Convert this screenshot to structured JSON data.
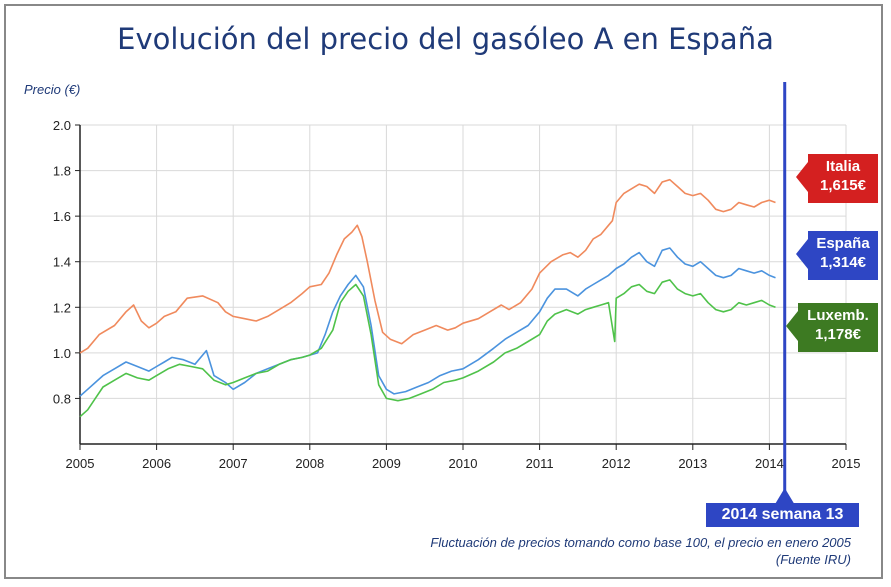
{
  "title": "Evolución del precio del gasóleo A en España",
  "y_axis_label": "Precio (€)",
  "footnote": {
    "line1": "Fluctuación de precios tomando como base 100, el precio en enero 2005",
    "line2": "(Fuente IRU)"
  },
  "week_marker": {
    "label": "2014 semana 13",
    "x": 2014.2
  },
  "callouts": {
    "italia": {
      "name": "Italia",
      "value": "1,615€",
      "color": "#d42020"
    },
    "espana": {
      "name": "España",
      "value": "1,314€",
      "color": "#2e46c4"
    },
    "luxemb": {
      "name": "Luxemb.",
      "value": "1,178€",
      "color": "#3d7a22"
    }
  },
  "chart_data": {
    "type": "line",
    "title": "Evolución del precio del gasóleo A en España",
    "ylabel": "Precio (€)",
    "xlabel": "",
    "xlim": [
      2005,
      2015
    ],
    "ylim": [
      0.6,
      2.0
    ],
    "x_ticks": [
      2005,
      2006,
      2007,
      2008,
      2009,
      2010,
      2011,
      2012,
      2013,
      2014,
      2015
    ],
    "y_ticks": [
      "0.8",
      "1.0",
      "1.2",
      "1.4",
      "1.6",
      "1.8",
      "2.0"
    ],
    "grid": true,
    "series": [
      {
        "name": "Italia",
        "color": "#f08a5d",
        "points": [
          [
            2005.0,
            1.0
          ],
          [
            2005.1,
            1.02
          ],
          [
            2005.25,
            1.08
          ],
          [
            2005.45,
            1.12
          ],
          [
            2005.6,
            1.18
          ],
          [
            2005.7,
            1.21
          ],
          [
            2005.8,
            1.14
          ],
          [
            2005.9,
            1.11
          ],
          [
            2006.0,
            1.13
          ],
          [
            2006.1,
            1.16
          ],
          [
            2006.25,
            1.18
          ],
          [
            2006.4,
            1.24
          ],
          [
            2006.6,
            1.25
          ],
          [
            2006.8,
            1.22
          ],
          [
            2006.9,
            1.18
          ],
          [
            2007.0,
            1.16
          ],
          [
            2007.15,
            1.15
          ],
          [
            2007.3,
            1.14
          ],
          [
            2007.45,
            1.16
          ],
          [
            2007.6,
            1.19
          ],
          [
            2007.75,
            1.22
          ],
          [
            2007.9,
            1.26
          ],
          [
            2008.0,
            1.29
          ],
          [
            2008.15,
            1.3
          ],
          [
            2008.25,
            1.35
          ],
          [
            2008.35,
            1.43
          ],
          [
            2008.45,
            1.5
          ],
          [
            2008.55,
            1.53
          ],
          [
            2008.62,
            1.56
          ],
          [
            2008.68,
            1.51
          ],
          [
            2008.75,
            1.4
          ],
          [
            2008.85,
            1.23
          ],
          [
            2008.95,
            1.09
          ],
          [
            2009.05,
            1.06
          ],
          [
            2009.2,
            1.04
          ],
          [
            2009.35,
            1.08
          ],
          [
            2009.5,
            1.1
          ],
          [
            2009.65,
            1.12
          ],
          [
            2009.8,
            1.1
          ],
          [
            2009.9,
            1.11
          ],
          [
            2010.0,
            1.13
          ],
          [
            2010.2,
            1.15
          ],
          [
            2010.35,
            1.18
          ],
          [
            2010.5,
            1.21
          ],
          [
            2010.6,
            1.19
          ],
          [
            2010.75,
            1.22
          ],
          [
            2010.9,
            1.28
          ],
          [
            2011.0,
            1.35
          ],
          [
            2011.15,
            1.4
          ],
          [
            2011.3,
            1.43
          ],
          [
            2011.4,
            1.44
          ],
          [
            2011.5,
            1.42
          ],
          [
            2011.6,
            1.45
          ],
          [
            2011.7,
            1.5
          ],
          [
            2011.8,
            1.52
          ],
          [
            2011.9,
            1.56
          ],
          [
            2011.95,
            1.58
          ],
          [
            2012.0,
            1.66
          ],
          [
            2012.1,
            1.7
          ],
          [
            2012.2,
            1.72
          ],
          [
            2012.3,
            1.74
          ],
          [
            2012.4,
            1.73
          ],
          [
            2012.5,
            1.7
          ],
          [
            2012.6,
            1.75
          ],
          [
            2012.7,
            1.76
          ],
          [
            2012.8,
            1.73
          ],
          [
            2012.9,
            1.7
          ],
          [
            2013.0,
            1.69
          ],
          [
            2013.1,
            1.7
          ],
          [
            2013.2,
            1.67
          ],
          [
            2013.3,
            1.63
          ],
          [
            2013.4,
            1.62
          ],
          [
            2013.5,
            1.63
          ],
          [
            2013.6,
            1.66
          ],
          [
            2013.7,
            1.65
          ],
          [
            2013.8,
            1.64
          ],
          [
            2013.9,
            1.66
          ],
          [
            2014.0,
            1.67
          ],
          [
            2014.08,
            1.66
          ]
        ]
      },
      {
        "name": "España",
        "color": "#4b93de",
        "points": [
          [
            2005.0,
            0.81
          ],
          [
            2005.1,
            0.84
          ],
          [
            2005.2,
            0.87
          ],
          [
            2005.3,
            0.9
          ],
          [
            2005.45,
            0.93
          ],
          [
            2005.6,
            0.96
          ],
          [
            2005.75,
            0.94
          ],
          [
            2005.9,
            0.92
          ],
          [
            2006.0,
            0.94
          ],
          [
            2006.1,
            0.96
          ],
          [
            2006.2,
            0.98
          ],
          [
            2006.35,
            0.97
          ],
          [
            2006.5,
            0.95
          ],
          [
            2006.65,
            1.01
          ],
          [
            2006.75,
            0.9
          ],
          [
            2006.9,
            0.87
          ],
          [
            2007.0,
            0.84
          ],
          [
            2007.15,
            0.87
          ],
          [
            2007.3,
            0.91
          ],
          [
            2007.45,
            0.93
          ],
          [
            2007.6,
            0.95
          ],
          [
            2007.75,
            0.97
          ],
          [
            2007.9,
            0.98
          ],
          [
            2008.0,
            0.99
          ],
          [
            2008.1,
            1.0
          ],
          [
            2008.2,
            1.08
          ],
          [
            2008.3,
            1.18
          ],
          [
            2008.4,
            1.25
          ],
          [
            2008.5,
            1.3
          ],
          [
            2008.6,
            1.34
          ],
          [
            2008.7,
            1.29
          ],
          [
            2008.8,
            1.12
          ],
          [
            2008.9,
            0.9
          ],
          [
            2009.0,
            0.84
          ],
          [
            2009.1,
            0.82
          ],
          [
            2009.25,
            0.83
          ],
          [
            2009.4,
            0.85
          ],
          [
            2009.55,
            0.87
          ],
          [
            2009.7,
            0.9
          ],
          [
            2009.85,
            0.92
          ],
          [
            2010.0,
            0.93
          ],
          [
            2010.2,
            0.97
          ],
          [
            2010.4,
            1.02
          ],
          [
            2010.55,
            1.06
          ],
          [
            2010.7,
            1.09
          ],
          [
            2010.85,
            1.12
          ],
          [
            2011.0,
            1.18
          ],
          [
            2011.1,
            1.24
          ],
          [
            2011.2,
            1.28
          ],
          [
            2011.35,
            1.28
          ],
          [
            2011.5,
            1.25
          ],
          [
            2011.6,
            1.28
          ],
          [
            2011.7,
            1.3
          ],
          [
            2011.8,
            1.32
          ],
          [
            2011.9,
            1.34
          ],
          [
            2012.0,
            1.37
          ],
          [
            2012.1,
            1.39
          ],
          [
            2012.2,
            1.42
          ],
          [
            2012.3,
            1.44
          ],
          [
            2012.4,
            1.4
          ],
          [
            2012.5,
            1.38
          ],
          [
            2012.6,
            1.45
          ],
          [
            2012.7,
            1.46
          ],
          [
            2012.8,
            1.42
          ],
          [
            2012.9,
            1.39
          ],
          [
            2013.0,
            1.38
          ],
          [
            2013.1,
            1.4
          ],
          [
            2013.2,
            1.37
          ],
          [
            2013.3,
            1.34
          ],
          [
            2013.4,
            1.33
          ],
          [
            2013.5,
            1.34
          ],
          [
            2013.6,
            1.37
          ],
          [
            2013.7,
            1.36
          ],
          [
            2013.8,
            1.35
          ],
          [
            2013.9,
            1.36
          ],
          [
            2014.0,
            1.34
          ],
          [
            2014.08,
            1.33
          ]
        ]
      },
      {
        "name": "Luxemb.",
        "color": "#4fc24a",
        "points": [
          [
            2005.0,
            0.72
          ],
          [
            2005.1,
            0.75
          ],
          [
            2005.2,
            0.8
          ],
          [
            2005.3,
            0.85
          ],
          [
            2005.45,
            0.88
          ],
          [
            2005.6,
            0.91
          ],
          [
            2005.75,
            0.89
          ],
          [
            2005.9,
            0.88
          ],
          [
            2006.0,
            0.9
          ],
          [
            2006.15,
            0.93
          ],
          [
            2006.3,
            0.95
          ],
          [
            2006.45,
            0.94
          ],
          [
            2006.6,
            0.93
          ],
          [
            2006.75,
            0.88
          ],
          [
            2006.9,
            0.86
          ],
          [
            2007.0,
            0.87
          ],
          [
            2007.15,
            0.89
          ],
          [
            2007.3,
            0.91
          ],
          [
            2007.45,
            0.92
          ],
          [
            2007.6,
            0.95
          ],
          [
            2007.75,
            0.97
          ],
          [
            2007.9,
            0.98
          ],
          [
            2008.0,
            0.99
          ],
          [
            2008.15,
            1.02
          ],
          [
            2008.3,
            1.1
          ],
          [
            2008.4,
            1.22
          ],
          [
            2008.5,
            1.27
          ],
          [
            2008.6,
            1.3
          ],
          [
            2008.7,
            1.25
          ],
          [
            2008.8,
            1.08
          ],
          [
            2008.9,
            0.86
          ],
          [
            2009.0,
            0.8
          ],
          [
            2009.15,
            0.79
          ],
          [
            2009.3,
            0.8
          ],
          [
            2009.45,
            0.82
          ],
          [
            2009.6,
            0.84
          ],
          [
            2009.75,
            0.87
          ],
          [
            2009.9,
            0.88
          ],
          [
            2010.0,
            0.89
          ],
          [
            2010.2,
            0.92
          ],
          [
            2010.4,
            0.96
          ],
          [
            2010.55,
            1.0
          ],
          [
            2010.7,
            1.02
          ],
          [
            2010.85,
            1.05
          ],
          [
            2011.0,
            1.08
          ],
          [
            2011.1,
            1.14
          ],
          [
            2011.2,
            1.17
          ],
          [
            2011.35,
            1.19
          ],
          [
            2011.5,
            1.17
          ],
          [
            2011.6,
            1.19
          ],
          [
            2011.7,
            1.2
          ],
          [
            2011.8,
            1.21
          ],
          [
            2011.9,
            1.22
          ],
          [
            2011.98,
            1.05
          ],
          [
            2012.0,
            1.24
          ],
          [
            2012.1,
            1.26
          ],
          [
            2012.2,
            1.29
          ],
          [
            2012.3,
            1.3
          ],
          [
            2012.4,
            1.27
          ],
          [
            2012.5,
            1.26
          ],
          [
            2012.6,
            1.31
          ],
          [
            2012.7,
            1.32
          ],
          [
            2012.8,
            1.28
          ],
          [
            2012.9,
            1.26
          ],
          [
            2013.0,
            1.25
          ],
          [
            2013.1,
            1.26
          ],
          [
            2013.2,
            1.22
          ],
          [
            2013.3,
            1.19
          ],
          [
            2013.4,
            1.18
          ],
          [
            2013.5,
            1.19
          ],
          [
            2013.6,
            1.22
          ],
          [
            2013.7,
            1.21
          ],
          [
            2013.8,
            1.22
          ],
          [
            2013.9,
            1.23
          ],
          [
            2014.0,
            1.21
          ],
          [
            2014.08,
            1.2
          ]
        ]
      }
    ]
  }
}
